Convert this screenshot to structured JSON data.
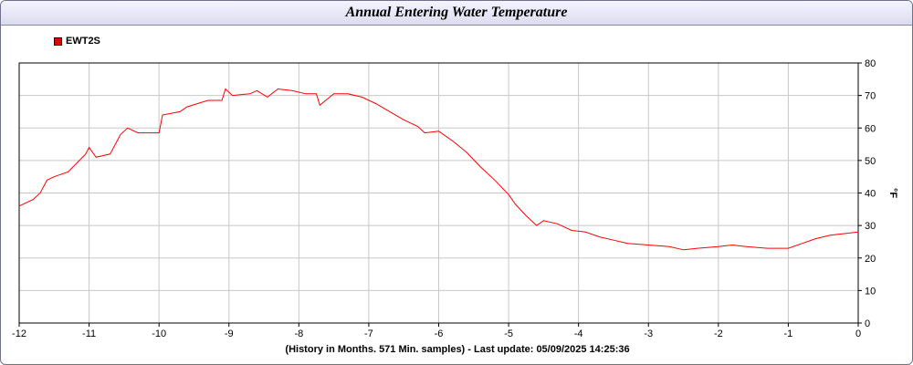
{
  "page": {
    "title": "Annual Entering Water Temperature",
    "footer": "(History in Months. 571 Min. samples) - Last update: 05/09/2025 14:25:36"
  },
  "chart_data": {
    "type": "line",
    "title": "Annual Entering Water Temperature",
    "xlabel": "",
    "ylabel": "°F",
    "xlim": [
      -12,
      0
    ],
    "ylim": [
      0,
      80
    ],
    "x_ticks": [
      -12,
      -11,
      -10,
      -9,
      -8,
      -7,
      -6,
      -5,
      -4,
      -3,
      -2,
      -1,
      0
    ],
    "y_ticks": [
      0,
      10,
      20,
      30,
      40,
      50,
      60,
      70,
      80
    ],
    "grid": true,
    "legend_position": "top-left",
    "series": [
      {
        "name": "EWT2S",
        "color": "#ff0000",
        "x": [
          -12.0,
          -11.8,
          -11.7,
          -11.6,
          -11.5,
          -11.3,
          -11.05,
          -11.0,
          -10.9,
          -10.7,
          -10.55,
          -10.45,
          -10.3,
          -10.0,
          -9.95,
          -9.7,
          -9.6,
          -9.3,
          -9.1,
          -9.05,
          -8.95,
          -8.7,
          -8.6,
          -8.45,
          -8.3,
          -8.1,
          -7.9,
          -7.75,
          -7.7,
          -7.5,
          -7.3,
          -7.1,
          -6.9,
          -6.7,
          -6.5,
          -6.3,
          -6.2,
          -6.0,
          -5.8,
          -5.6,
          -5.4,
          -5.2,
          -5.0,
          -4.9,
          -4.75,
          -4.6,
          -4.5,
          -4.3,
          -4.1,
          -3.9,
          -3.7,
          -3.5,
          -3.3,
          -3.0,
          -2.7,
          -2.5,
          -2.3,
          -2.0,
          -1.8,
          -1.6,
          -1.3,
          -1.0,
          -0.8,
          -0.6,
          -0.4,
          -0.2,
          0.0
        ],
        "y": [
          36,
          38,
          40,
          44,
          45,
          46.5,
          52,
          54,
          51,
          52,
          58,
          60,
          58.5,
          58.5,
          64,
          65,
          66.5,
          68.5,
          68.5,
          72,
          70,
          70.5,
          71.5,
          69.5,
          72,
          71.5,
          70.5,
          70.5,
          67,
          70.5,
          70.5,
          69.5,
          67.5,
          65,
          62.5,
          60.5,
          58.5,
          59,
          56,
          52.5,
          48,
          44,
          39.5,
          36.5,
          33,
          30,
          31.5,
          30.5,
          28.5,
          28,
          26.5,
          25.5,
          24.5,
          24,
          23.5,
          22.5,
          23,
          23.5,
          24,
          23.5,
          23,
          23,
          24.5,
          26,
          27,
          27.5,
          28
        ]
      }
    ]
  }
}
